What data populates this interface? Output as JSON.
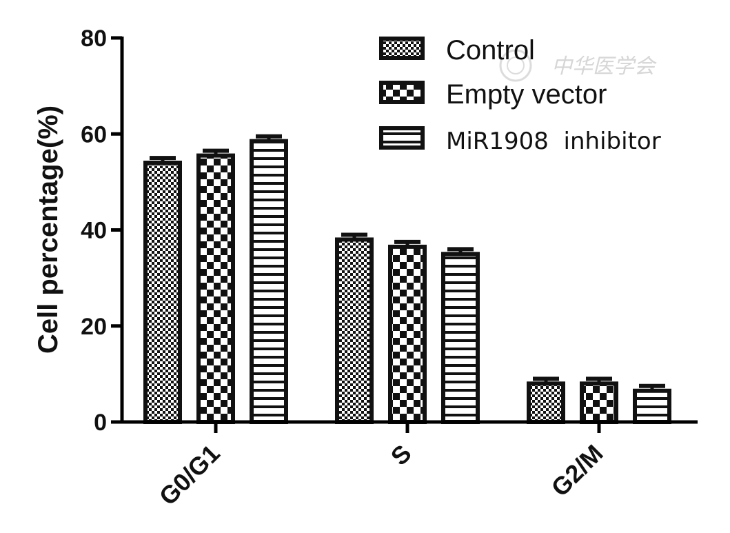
{
  "chart_data": {
    "type": "bar",
    "ylabel": "Cell percentage(%)",
    "xlabel": "",
    "ylim": [
      0,
      80
    ],
    "yticks": [
      "0",
      "20",
      "40",
      "60",
      "80"
    ],
    "categories": [
      "G0/G1",
      "S",
      "G2/M"
    ],
    "series": [
      {
        "name": "Control",
        "values": [
          54,
          38,
          8
        ],
        "errors": [
          1,
          1,
          1
        ],
        "pattern": "fine-checker"
      },
      {
        "name": "Empty vector",
        "values": [
          55.5,
          36.5,
          8
        ],
        "errors": [
          1,
          1,
          1
        ],
        "pattern": "coarse-checker"
      },
      {
        "name": "MiR1908  inhibitor",
        "values": [
          58.5,
          35,
          6.5
        ],
        "errors": [
          1,
          1,
          1
        ],
        "pattern": "horizontal-stripes"
      }
    ],
    "legend_position": "top-right",
    "grid": false,
    "watermark": "中华医学会"
  }
}
